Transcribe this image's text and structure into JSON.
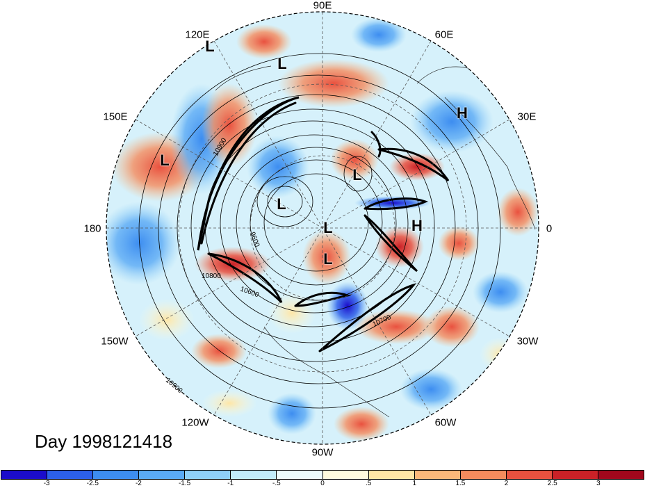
{
  "title": "Day 1998121418",
  "longitude_labels": [
    "90E",
    "60E",
    "30E",
    "0",
    "30W",
    "60W",
    "90W",
    "120W",
    "150W",
    "180",
    "150E",
    "120E"
  ],
  "pressure_markers": [
    {
      "type": "L",
      "lon": 120,
      "lat": 33
    },
    {
      "type": "L",
      "lon": 98,
      "lat": 40
    },
    {
      "type": "H",
      "lon": 38,
      "lat": 50
    },
    {
      "type": "L",
      "lon": 150,
      "lat": 40
    },
    {
      "type": "L",
      "lon": 70,
      "lat": 70
    },
    {
      "type": "L",
      "lon": 130,
      "lat": 72
    },
    {
      "type": "L",
      "lon": -120,
      "lat": 90
    },
    {
      "type": "H",
      "lon": 10,
      "lat": 68
    },
    {
      "type": "L",
      "lon": -95,
      "lat": 77
    }
  ],
  "contour_labels": [
    "10900",
    "10800",
    "10700",
    "10600",
    "9600",
    "10900"
  ],
  "colorbar": {
    "colors": [
      "#1b0ccb",
      "#2c5fea",
      "#3d8df0",
      "#5aaaf5",
      "#8fd0f8",
      "#c2ecfa",
      "#eefbfc",
      "#fffbde",
      "#fee6a6",
      "#fbb87a",
      "#f58b5d",
      "#e9513f",
      "#cb2127",
      "#a1071c"
    ],
    "tick_labels": [
      "-3",
      "-2.5",
      "-2",
      "-1.5",
      "-1",
      "-.5",
      "0",
      ".5",
      "1",
      "1.5",
      "2",
      "2.5",
      "3"
    ]
  }
}
